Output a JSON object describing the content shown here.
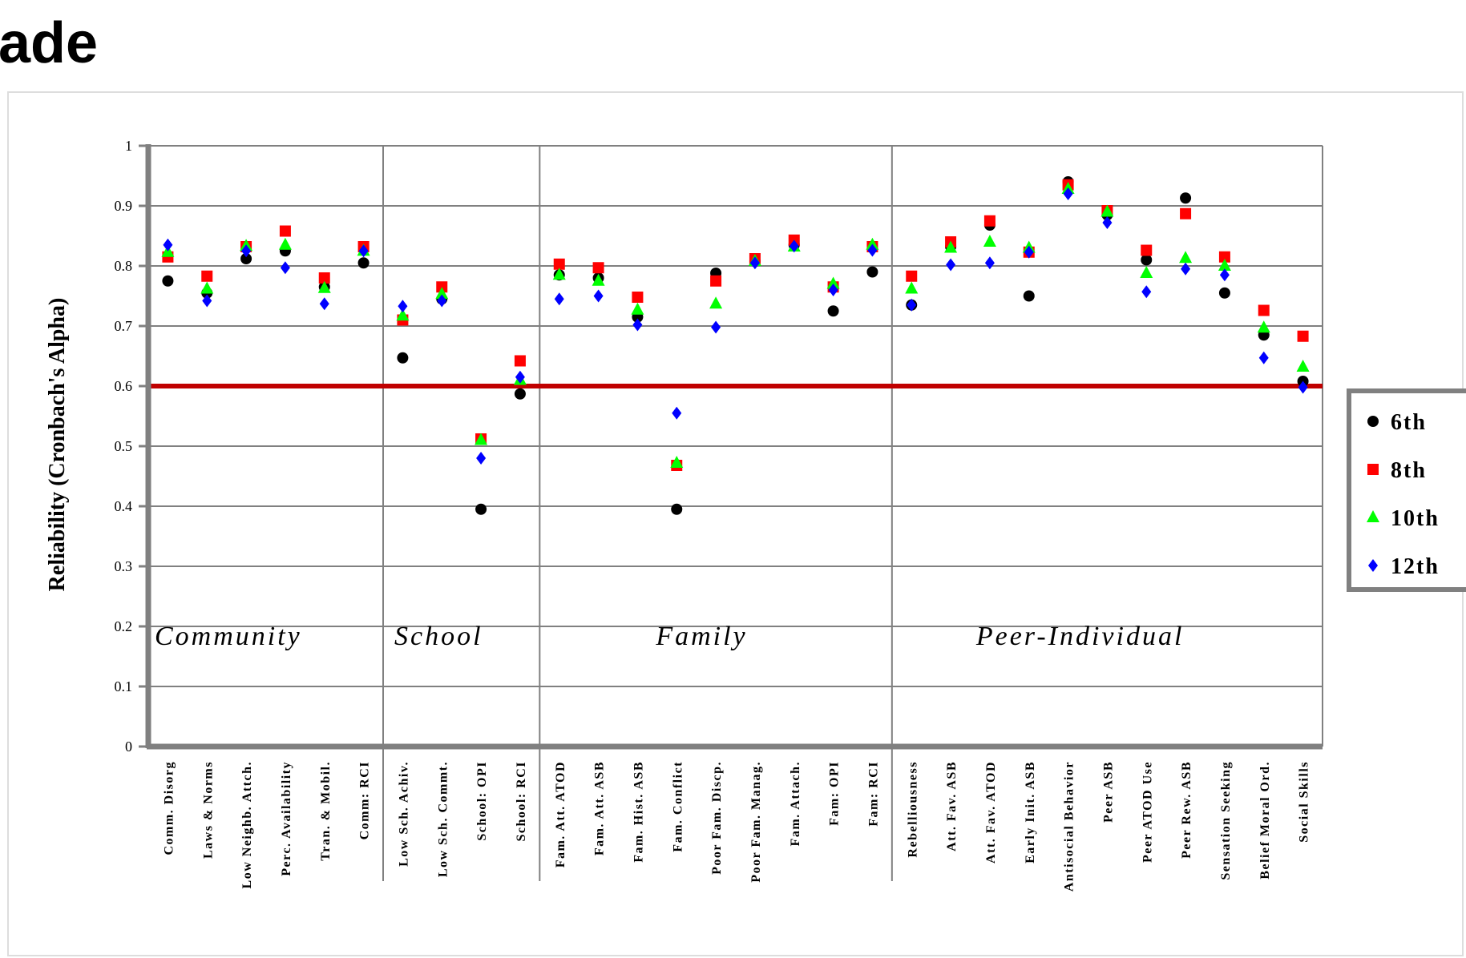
{
  "title": "ade",
  "chart_data": {
    "type": "scatter",
    "ylabel": "Reliability (Cronbach's Alpha)",
    "ylim": [
      0,
      1
    ],
    "yticks": [
      "0",
      "0.1",
      "0.2",
      "0.3",
      "0.4",
      "0.5",
      "0.6",
      "0.7",
      "0.8",
      "0.9",
      "1"
    ],
    "threshold": 0.6,
    "threshold_color": "#c00000",
    "grid": true,
    "legend_position": "right",
    "categories": [
      "Comm. Disorg",
      "Laws & Norms",
      "Low Neighb. Attch.",
      "Perc. Availability",
      "Tran. & Mobil.",
      "Comm: RCI",
      "Low Sch. Achiv.",
      "Low Sch. Commt.",
      "School: OPI",
      "School: RCI",
      "Fam. Att. ATOD",
      "Fam. Att. ASB",
      "Fam. Hist. ASB",
      "Fam. Conflict",
      "Poor Fam. Discp.",
      "Poor Fam. Manag.",
      "Fam. Attach.",
      "Fam: OPI",
      "Fam: RCI",
      "Rebelliousness",
      "Att. Fav. ASB",
      "Att. Fav. ATOD",
      "Early Init. ASB",
      "Antisocial Behavior",
      "Peer ASB",
      "Peer ATOD Use",
      "Peer Rew. ASB",
      "Sensation Seeking",
      "Belief Moral Ord.",
      "Social Skills"
    ],
    "groups": [
      {
        "label": "Community",
        "count": 6
      },
      {
        "label": "School",
        "count": 4
      },
      {
        "label": "Family",
        "count": 9
      },
      {
        "label": "Peer-Individual",
        "count": 11
      }
    ],
    "series": [
      {
        "name": "6th",
        "color": "#000000",
        "marker": "circle",
        "values": [
          0.775,
          0.755,
          0.812,
          0.825,
          0.765,
          0.805,
          0.647,
          0.745,
          0.395,
          0.587,
          0.785,
          0.78,
          0.715,
          0.395,
          0.788,
          0.808,
          0.835,
          0.725,
          0.79,
          0.735,
          0.832,
          0.868,
          0.75,
          0.94,
          0.885,
          0.81,
          0.913,
          0.755,
          0.685,
          0.608
        ]
      },
      {
        "name": "8th",
        "color": "#ff0000",
        "marker": "square",
        "values": [
          0.815,
          0.783,
          0.832,
          0.858,
          0.78,
          0.832,
          0.71,
          0.765,
          0.512,
          0.642,
          0.803,
          0.797,
          0.748,
          0.468,
          0.775,
          0.812,
          0.843,
          0.765,
          0.832,
          0.783,
          0.84,
          0.875,
          0.823,
          0.935,
          0.892,
          0.826,
          0.887,
          0.815,
          0.726,
          0.683
        ]
      },
      {
        "name": "10th",
        "color": "#00ff00",
        "marker": "triangle",
        "values": [
          0.823,
          0.762,
          0.833,
          0.835,
          0.763,
          0.825,
          0.717,
          0.753,
          0.51,
          0.61,
          0.785,
          0.775,
          0.727,
          0.472,
          0.737,
          0.808,
          0.832,
          0.77,
          0.835,
          0.762,
          0.83,
          0.84,
          0.83,
          0.928,
          0.89,
          0.788,
          0.813,
          0.8,
          0.697,
          0.632
        ]
      },
      {
        "name": "12th",
        "color": "#0000ff",
        "marker": "diamond",
        "values": [
          0.835,
          0.742,
          0.825,
          0.797,
          0.737,
          0.825,
          0.733,
          0.742,
          0.48,
          0.615,
          0.745,
          0.75,
          0.702,
          0.555,
          0.698,
          0.805,
          0.833,
          0.76,
          0.826,
          0.735,
          0.802,
          0.805,
          0.823,
          0.92,
          0.872,
          0.757,
          0.795,
          0.785,
          0.647,
          0.598
        ]
      }
    ]
  }
}
